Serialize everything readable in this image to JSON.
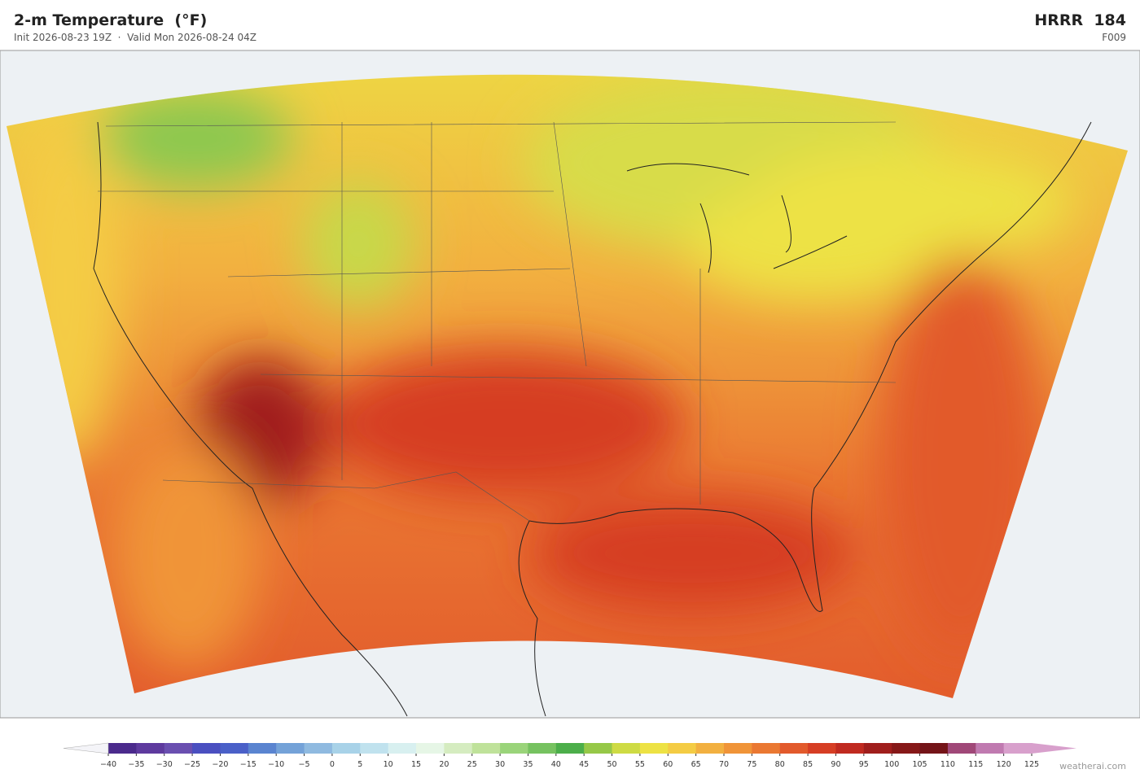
{
  "header": {
    "title": "2-m Temperature  (°F)",
    "subtitle": "Init 2026-08-23 19Z  ·  Valid Mon 2026-08-24 04Z",
    "model": "HRRR  184",
    "forecast_hour": "F009"
  },
  "colorbar": {
    "ticks": [
      {
        "value": -40,
        "label": "−40"
      },
      {
        "value": -35,
        "label": "−35"
      },
      {
        "value": -30,
        "label": "−30"
      },
      {
        "value": -25,
        "label": "−25"
      },
      {
        "value": -20,
        "label": "−20"
      },
      {
        "value": -15,
        "label": "−15"
      },
      {
        "value": -10,
        "label": "−10"
      },
      {
        "value": -5,
        "label": "−5"
      },
      0,
      5,
      10,
      15,
      20,
      25,
      30,
      35,
      40,
      45,
      50,
      55,
      60,
      65,
      70,
      75,
      80,
      85,
      90,
      95,
      100,
      105,
      110,
      115,
      120,
      125
    ],
    "colors": [
      "#4b2a8c",
      "#5e3a9e",
      "#6a4fb0",
      "#4a4fc0",
      "#4a60c8",
      "#5a84d0",
      "#74a2d8",
      "#8fbae0",
      "#a8d2e8",
      "#c0e2ee",
      "#d8f0f0",
      "#e6f6e6",
      "#d5ecc0",
      "#bfe29a",
      "#9ad47a",
      "#76c260",
      "#4cae4a",
      "#96c848",
      "#cedb44",
      "#ede244",
      "#f4cc44",
      "#f2b040",
      "#f09438",
      "#ea7832",
      "#e25a2c",
      "#d63e24",
      "#c02a20",
      "#a01e1c",
      "#861818",
      "#741418",
      "#a04878",
      "#c07ab0",
      "#d8a0cc"
    ],
    "under_color": "#f4f4f8",
    "over_color": "#d8a0cc"
  },
  "attribution": "weatherai.com"
}
